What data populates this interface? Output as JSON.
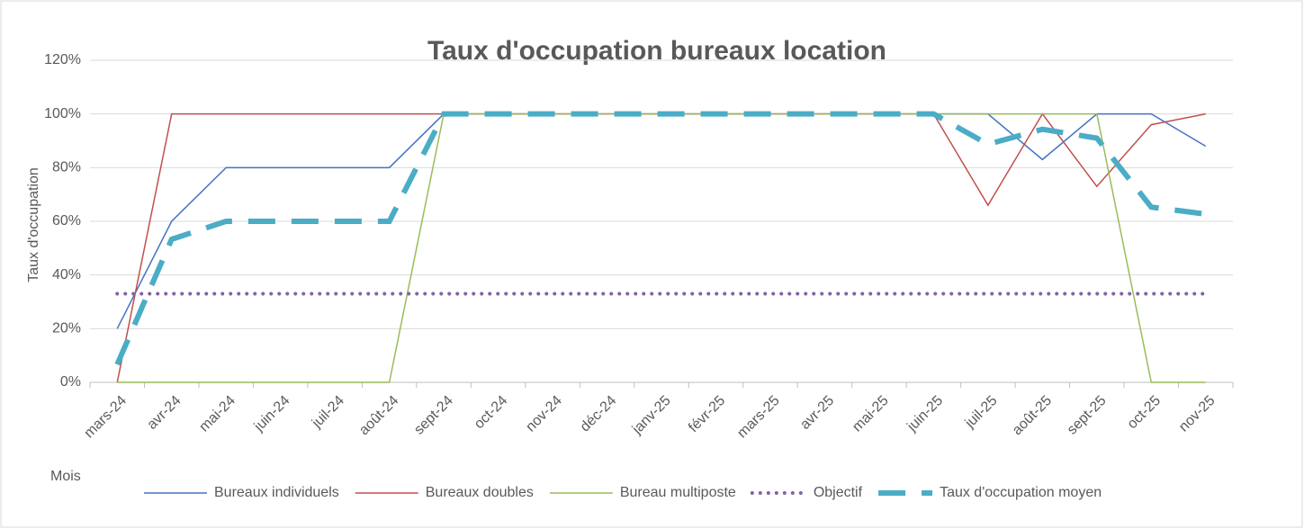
{
  "chart_data": {
    "type": "line",
    "title": "Taux d'occupation bureaux location",
    "y_label": "Taux d'occupation",
    "x_label": "Mois",
    "categories": [
      "mars-24",
      "avr-24",
      "mai-24",
      "juin-24",
      "juil-24",
      "août-24",
      "sept-24",
      "oct-24",
      "nov-24",
      "déc-24",
      "janv-25",
      "févr-25",
      "mars-25",
      "avr-25",
      "mai-25",
      "juin-25",
      "juil-25",
      "août-25",
      "sept-25",
      "oct-25",
      "nov-25"
    ],
    "series": [
      {
        "name": "Bureaux individuels",
        "color": "#4472c4",
        "style": "solid",
        "values": [
          20,
          60,
          80,
          80,
          80,
          80,
          100,
          100,
          100,
          100,
          100,
          100,
          100,
          100,
          100,
          100,
          100,
          83,
          100,
          100,
          88
        ]
      },
      {
        "name": "Bureaux doubles",
        "color": "#c0504d",
        "style": "solid",
        "values": [
          0,
          100,
          100,
          100,
          100,
          100,
          100,
          100,
          100,
          100,
          100,
          100,
          100,
          100,
          100,
          100,
          66,
          100,
          73,
          96,
          100
        ]
      },
      {
        "name": "Bureau multiposte",
        "color": "#9bbb59",
        "style": "solid",
        "values": [
          0,
          0,
          0,
          0,
          0,
          0,
          100,
          100,
          100,
          100,
          100,
          100,
          100,
          100,
          100,
          100,
          100,
          100,
          100,
          0,
          0
        ]
      },
      {
        "name": "Objectif",
        "color": "#8064a2",
        "style": "dotted",
        "values": [
          33,
          33,
          33,
          33,
          33,
          33,
          33,
          33,
          33,
          33,
          33,
          33,
          33,
          33,
          33,
          33,
          33,
          33,
          33,
          33,
          33
        ]
      },
      {
        "name": "Taux d'occupation moyen",
        "color": "#4bacc6",
        "style": "dashed",
        "values": [
          6.7,
          53.3,
          60,
          60,
          60,
          60,
          100,
          100,
          100,
          100,
          100,
          100,
          100,
          100,
          100,
          100,
          88.7,
          94.3,
          91,
          65.3,
          62.7
        ]
      }
    ],
    "ylim": [
      0,
      120
    ],
    "yticks": [
      {
        "value": 0,
        "label": "0%"
      },
      {
        "value": 20,
        "label": "20%"
      },
      {
        "value": 40,
        "label": "40%"
      },
      {
        "value": 60,
        "label": "60%"
      },
      {
        "value": 80,
        "label": "80%"
      },
      {
        "value": 100,
        "label": "100%"
      },
      {
        "value": 120,
        "label": "120%"
      }
    ],
    "grid": true,
    "legend": "bottom"
  }
}
